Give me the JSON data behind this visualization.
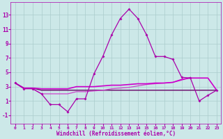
{
  "xlabel": "Windchill (Refroidissement éolien,°C)",
  "bg_color": "#cce8e8",
  "grid_color": "#aacccc",
  "color_main": "#aa00aa",
  "color_line1": "#cc00cc",
  "color_line2": "#660066",
  "color_line3": "#cc44cc",
  "xlim": [
    -0.5,
    23.5
  ],
  "ylim": [
    -2.2,
    14.8
  ],
  "xticks": [
    0,
    1,
    2,
    3,
    4,
    5,
    6,
    7,
    8,
    9,
    10,
    11,
    12,
    13,
    14,
    15,
    16,
    17,
    18,
    19,
    20,
    21,
    22,
    23
  ],
  "yticks": [
    -1,
    1,
    3,
    5,
    7,
    9,
    11,
    13
  ],
  "main_x": [
    0,
    1,
    2,
    3,
    4,
    5,
    6,
    7,
    8,
    9,
    10,
    11,
    12,
    13,
    14,
    15,
    16,
    17,
    18,
    19,
    20,
    21,
    22,
    23
  ],
  "main_y": [
    3.5,
    2.7,
    2.7,
    2.0,
    0.5,
    0.5,
    -0.5,
    1.3,
    1.3,
    4.8,
    7.2,
    10.2,
    12.5,
    13.8,
    12.5,
    10.2,
    7.2,
    7.2,
    6.8,
    4.3,
    4.2,
    1.0,
    1.8,
    2.5
  ],
  "line1_x": [
    0,
    1,
    2,
    3,
    4,
    5,
    6,
    7,
    8,
    9,
    10,
    11,
    12,
    13,
    14,
    15,
    16,
    17,
    18,
    19,
    20,
    21,
    22,
    23
  ],
  "line1_y": [
    3.5,
    2.8,
    2.8,
    2.7,
    2.7,
    2.7,
    2.7,
    3.0,
    3.0,
    3.0,
    3.1,
    3.2,
    3.2,
    3.3,
    3.4,
    3.4,
    3.5,
    3.5,
    3.6,
    4.0,
    4.2,
    4.2,
    4.2,
    2.5
  ],
  "line2_x": [
    0,
    1,
    2,
    3,
    4,
    5,
    6,
    7,
    8,
    9,
    10,
    11,
    12,
    13,
    14,
    15,
    16,
    17,
    18,
    19,
    20,
    21,
    22,
    23
  ],
  "line2_y": [
    3.5,
    2.8,
    2.8,
    2.5,
    2.5,
    2.5,
    2.5,
    2.5,
    2.5,
    2.5,
    2.5,
    2.5,
    2.5,
    2.5,
    2.5,
    2.5,
    2.5,
    2.5,
    2.5,
    2.5,
    2.5,
    2.5,
    2.5,
    2.5
  ],
  "line3_x": [
    2,
    3,
    4,
    5,
    6,
    7,
    8,
    9,
    10,
    11,
    12,
    13,
    14,
    15,
    16,
    17,
    18,
    19,
    20
  ],
  "line3_y": [
    2.7,
    2.0,
    2.0,
    2.0,
    2.0,
    2.3,
    2.3,
    2.4,
    2.5,
    2.7,
    2.8,
    2.9,
    3.1,
    3.3,
    3.4,
    3.5,
    3.6,
    3.9,
    4.3
  ]
}
